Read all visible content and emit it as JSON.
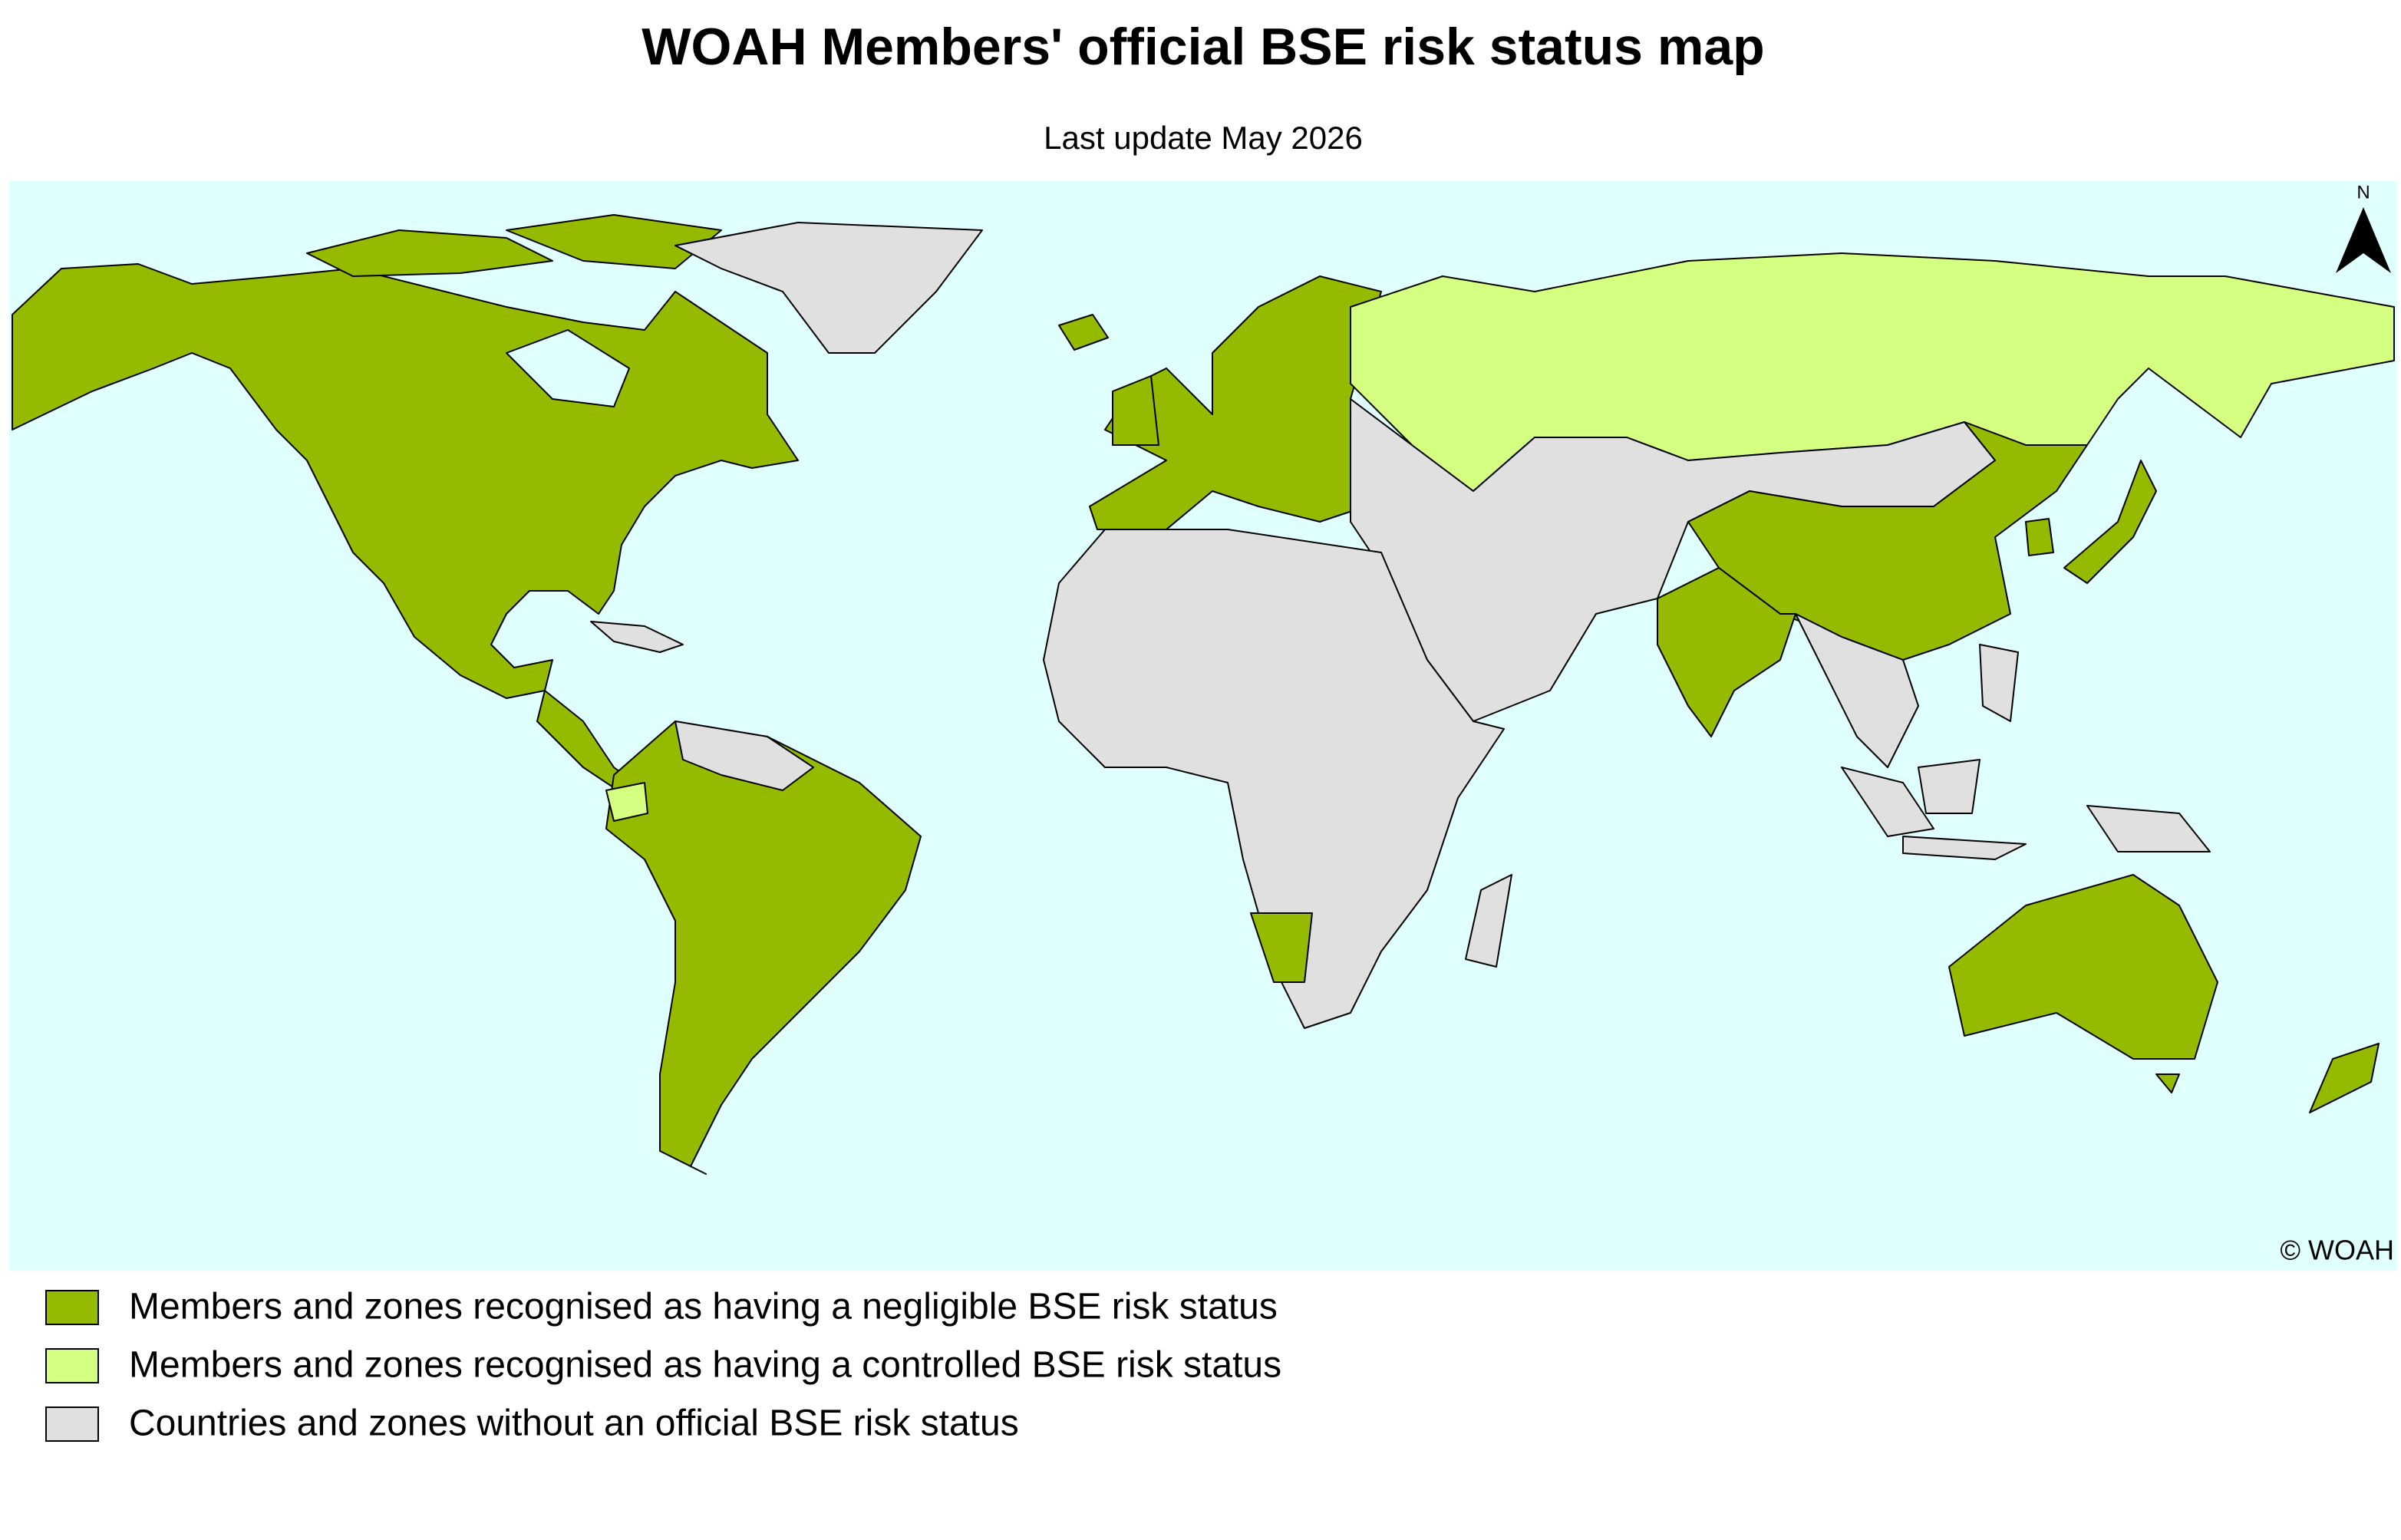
{
  "header": {
    "title": "WOAH Members' official BSE risk status map",
    "subtitle": "Last update May 2026"
  },
  "map": {
    "north_label": "N",
    "copyright": "© WOAH"
  },
  "legend": {
    "items": [
      {
        "label": "Members and zones recognised as having a negligible BSE risk status",
        "color": "#94bb00"
      },
      {
        "label": "Members and zones recognised as having a controlled BSE risk status",
        "color": "#d4ff80"
      },
      {
        "label": "Countries and zones without an official BSE risk status",
        "color": "#e0e0e0"
      }
    ]
  }
}
